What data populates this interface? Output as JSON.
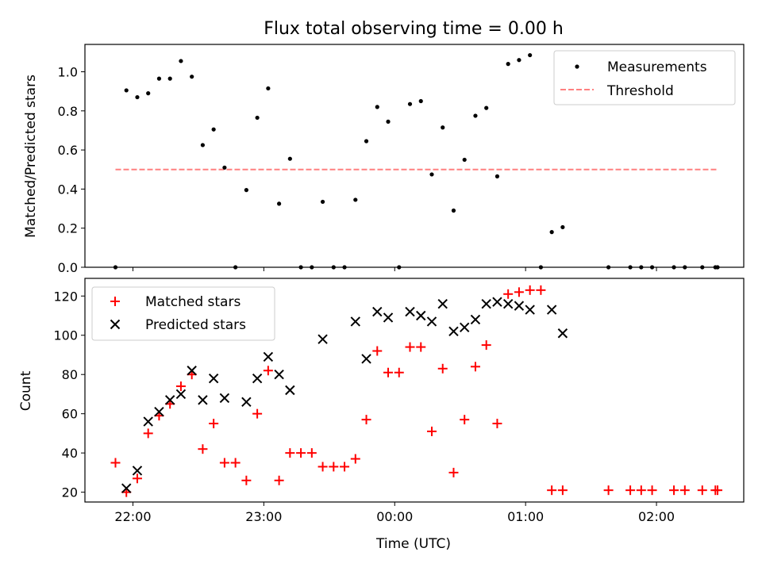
{
  "title": "Flux total observing time = 0.00 h",
  "colors": {
    "measurement": "#000000",
    "threshold": "#ff8080",
    "matched": "#ff0000",
    "predicted": "#000000"
  },
  "chart_data": [
    {
      "type": "scatter",
      "panel": "top",
      "ylabel": "Matched/Predicted stars",
      "xlabel": "",
      "xlim": [
        "21:38",
        "02:40"
      ],
      "ylim": [
        0,
        1.14
      ],
      "yticks": [
        "0.0",
        "0.2",
        "0.4",
        "0.6",
        "0.8",
        "1.0"
      ],
      "legend_position": "upper right",
      "legend": [
        "Measurements",
        "Threshold"
      ],
      "threshold": {
        "value": 0.5,
        "x_start": "21:52",
        "x_end": "02:28",
        "style": "dashed"
      },
      "series": [
        {
          "name": "Measurements",
          "marker": "dot",
          "points": [
            [
              "21:52",
              0.0
            ],
            [
              "21:57",
              0.905
            ],
            [
              "22:02",
              0.87
            ],
            [
              "22:07",
              0.89
            ],
            [
              "22:12",
              0.965
            ],
            [
              "22:17",
              0.965
            ],
            [
              "22:22",
              1.055
            ],
            [
              "22:27",
              0.975
            ],
            [
              "22:32",
              0.625
            ],
            [
              "22:37",
              0.705
            ],
            [
              "22:42",
              0.51
            ],
            [
              "22:47",
              0.0
            ],
            [
              "22:52",
              0.395
            ],
            [
              "22:57",
              0.765
            ],
            [
              "23:02",
              0.915
            ],
            [
              "23:07",
              0.325
            ],
            [
              "23:12",
              0.555
            ],
            [
              "23:17",
              0.0
            ],
            [
              "23:22",
              0.0
            ],
            [
              "23:27",
              0.335
            ],
            [
              "23:32",
              0.0
            ],
            [
              "23:37",
              0.0
            ],
            [
              "23:42",
              0.345
            ],
            [
              "23:47",
              0.645
            ],
            [
              "23:52",
              0.82
            ],
            [
              "23:57",
              0.745
            ],
            [
              "00:02",
              0.0
            ],
            [
              "00:07",
              0.835
            ],
            [
              "00:12",
              0.85
            ],
            [
              "00:17",
              0.475
            ],
            [
              "00:22",
              0.715
            ],
            [
              "00:27",
              0.29
            ],
            [
              "00:32",
              0.55
            ],
            [
              "00:37",
              0.775
            ],
            [
              "00:42",
              0.815
            ],
            [
              "00:47",
              0.465
            ],
            [
              "00:52",
              1.04
            ],
            [
              "00:57",
              1.06
            ],
            [
              "01:02",
              1.085
            ],
            [
              "01:07",
              0.0
            ],
            [
              "01:12",
              0.18
            ],
            [
              "01:17",
              0.205
            ],
            [
              "01:38",
              0.0
            ],
            [
              "01:48",
              0.0
            ],
            [
              "01:53",
              0.0
            ],
            [
              "01:58",
              0.0
            ],
            [
              "02:08",
              0.0
            ],
            [
              "02:13",
              0.0
            ],
            [
              "02:21",
              0.0
            ],
            [
              "02:27",
              0.0
            ],
            [
              "02:28",
              0.0
            ]
          ]
        }
      ]
    },
    {
      "type": "scatter",
      "panel": "bottom",
      "ylabel": "Count",
      "xlabel": "Time (UTC)",
      "xlim": [
        "21:38",
        "02:40"
      ],
      "ylim": [
        15,
        129
      ],
      "yticks": [
        "20",
        "40",
        "60",
        "80",
        "100",
        "120"
      ],
      "xticks": [
        "22:00",
        "23:00",
        "00:00",
        "01:00",
        "02:00"
      ],
      "legend_position": "upper left",
      "legend": [
        "Matched stars",
        "Predicted stars"
      ],
      "series": [
        {
          "name": "Matched stars",
          "marker": "plus",
          "points": [
            [
              "21:52",
              35
            ],
            [
              "21:57",
              20
            ],
            [
              "22:02",
              27
            ],
            [
              "22:07",
              50
            ],
            [
              "22:12",
              59
            ],
            [
              "22:17",
              65
            ],
            [
              "22:22",
              74
            ],
            [
              "22:27",
              80
            ],
            [
              "22:32",
              42
            ],
            [
              "22:37",
              55
            ],
            [
              "22:42",
              35
            ],
            [
              "22:47",
              35
            ],
            [
              "22:52",
              26
            ],
            [
              "22:57",
              60
            ],
            [
              "23:02",
              82
            ],
            [
              "23:07",
              26
            ],
            [
              "23:12",
              40
            ],
            [
              "23:17",
              40
            ],
            [
              "23:22",
              40
            ],
            [
              "23:27",
              33
            ],
            [
              "23:32",
              33
            ],
            [
              "23:37",
              33
            ],
            [
              "23:42",
              37
            ],
            [
              "23:47",
              57
            ],
            [
              "23:52",
              92
            ],
            [
              "23:57",
              81
            ],
            [
              "00:02",
              81
            ],
            [
              "00:07",
              94
            ],
            [
              "00:12",
              94
            ],
            [
              "00:17",
              51
            ],
            [
              "00:22",
              83
            ],
            [
              "00:27",
              30
            ],
            [
              "00:32",
              57
            ],
            [
              "00:37",
              84
            ],
            [
              "00:42",
              95
            ],
            [
              "00:47",
              55
            ],
            [
              "00:52",
              121
            ],
            [
              "00:57",
              122
            ],
            [
              "01:02",
              123
            ],
            [
              "01:07",
              123
            ],
            [
              "01:12",
              21
            ],
            [
              "01:17",
              21
            ],
            [
              "01:38",
              21
            ],
            [
              "01:48",
              21
            ],
            [
              "01:53",
              21
            ],
            [
              "01:58",
              21
            ],
            [
              "02:08",
              21
            ],
            [
              "02:13",
              21
            ],
            [
              "02:21",
              21
            ],
            [
              "02:27",
              21
            ],
            [
              "02:28",
              21
            ]
          ]
        },
        {
          "name": "Predicted stars",
          "marker": "x",
          "points": [
            [
              "21:57",
              22
            ],
            [
              "22:02",
              31
            ],
            [
              "22:07",
              56
            ],
            [
              "22:12",
              61
            ],
            [
              "22:17",
              67
            ],
            [
              "22:22",
              70
            ],
            [
              "22:27",
              82
            ],
            [
              "22:32",
              67
            ],
            [
              "22:37",
              78
            ],
            [
              "22:42",
              68
            ],
            [
              "22:52",
              66
            ],
            [
              "22:57",
              78
            ],
            [
              "23:02",
              89
            ],
            [
              "23:07",
              80
            ],
            [
              "23:12",
              72
            ],
            [
              "23:27",
              98
            ],
            [
              "23:42",
              107
            ],
            [
              "23:47",
              88
            ],
            [
              "23:52",
              112
            ],
            [
              "23:57",
              109
            ],
            [
              "00:07",
              112
            ],
            [
              "00:12",
              110
            ],
            [
              "00:17",
              107
            ],
            [
              "00:22",
              116
            ],
            [
              "00:27",
              102
            ],
            [
              "00:32",
              104
            ],
            [
              "00:37",
              108
            ],
            [
              "00:42",
              116
            ],
            [
              "00:47",
              117
            ],
            [
              "00:52",
              116
            ],
            [
              "00:57",
              115
            ],
            [
              "01:02",
              113
            ],
            [
              "01:12",
              113
            ],
            [
              "01:17",
              101
            ]
          ]
        }
      ]
    }
  ]
}
